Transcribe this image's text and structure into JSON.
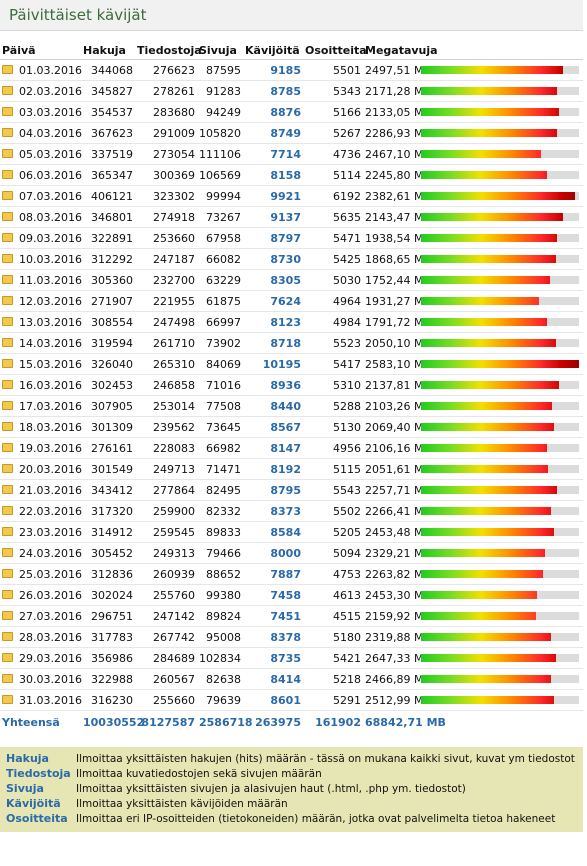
{
  "title": "Päivittäiset kävijät",
  "colors": {
    "title_text": "#3a6e3a",
    "link_blue": "#2a6aa8",
    "legend_bg": "#e6e6b4"
  },
  "headers": [
    "Päivä",
    "Hakuja",
    "Tiedostoja",
    "Sivuja",
    "Kävijöitä",
    "Osoitteita",
    "Megatavuja"
  ],
  "bar_scale_max": 10195,
  "rows": [
    {
      "date": "01.03.2016",
      "hits": "344068",
      "files": "276623",
      "pages": "87595",
      "visitors": "9185",
      "ips": "5501",
      "mb": "2497,51 MB",
      "v": 9185
    },
    {
      "date": "02.03.2016",
      "hits": "345827",
      "files": "278261",
      "pages": "91283",
      "visitors": "8785",
      "ips": "5343",
      "mb": "2171,28 MB",
      "v": 8785
    },
    {
      "date": "03.03.2016",
      "hits": "354537",
      "files": "283680",
      "pages": "94249",
      "visitors": "8876",
      "ips": "5166",
      "mb": "2133,05 MB",
      "v": 8876
    },
    {
      "date": "04.03.2016",
      "hits": "367623",
      "files": "291009",
      "pages": "105820",
      "visitors": "8749",
      "ips": "5267",
      "mb": "2286,93 MB",
      "v": 8749
    },
    {
      "date": "05.03.2016",
      "hits": "337519",
      "files": "273054",
      "pages": "111106",
      "visitors": "7714",
      "ips": "4736",
      "mb": "2467,10 MB",
      "v": 7714
    },
    {
      "date": "06.03.2016",
      "hits": "365347",
      "files": "300369",
      "pages": "106569",
      "visitors": "8158",
      "ips": "5114",
      "mb": "2245,80 MB",
      "v": 8158
    },
    {
      "date": "07.03.2016",
      "hits": "406121",
      "files": "323302",
      "pages": "99994",
      "visitors": "9921",
      "ips": "6192",
      "mb": "2382,61 MB",
      "v": 9921
    },
    {
      "date": "08.03.2016",
      "hits": "346801",
      "files": "274918",
      "pages": "73267",
      "visitors": "9137",
      "ips": "5635",
      "mb": "2143,47 MB",
      "v": 9137
    },
    {
      "date": "09.03.2016",
      "hits": "322891",
      "files": "253660",
      "pages": "67958",
      "visitors": "8797",
      "ips": "5471",
      "mb": "1938,54 MB",
      "v": 8797
    },
    {
      "date": "10.03.2016",
      "hits": "312292",
      "files": "247187",
      "pages": "66082",
      "visitors": "8730",
      "ips": "5425",
      "mb": "1868,65 MB",
      "v": 8730
    },
    {
      "date": "11.03.2016",
      "hits": "305360",
      "files": "232700",
      "pages": "63229",
      "visitors": "8305",
      "ips": "5030",
      "mb": "1752,44 MB",
      "v": 8305
    },
    {
      "date": "12.03.2016",
      "hits": "271907",
      "files": "221955",
      "pages": "61875",
      "visitors": "7624",
      "ips": "4964",
      "mb": "1931,27 MB",
      "v": 7624
    },
    {
      "date": "13.03.2016",
      "hits": "308554",
      "files": "247498",
      "pages": "66997",
      "visitors": "8123",
      "ips": "4984",
      "mb": "1791,72 MB",
      "v": 8123
    },
    {
      "date": "14.03.2016",
      "hits": "319594",
      "files": "261710",
      "pages": "73902",
      "visitors": "8718",
      "ips": "5523",
      "mb": "2050,10 MB",
      "v": 8718
    },
    {
      "date": "15.03.2016",
      "hits": "326040",
      "files": "265310",
      "pages": "84069",
      "visitors": "10195",
      "ips": "5417",
      "mb": "2583,10 MB",
      "v": 10195
    },
    {
      "date": "16.03.2016",
      "hits": "302453",
      "files": "246858",
      "pages": "71016",
      "visitors": "8936",
      "ips": "5310",
      "mb": "2137,81 MB",
      "v": 8936
    },
    {
      "date": "17.03.2016",
      "hits": "307905",
      "files": "253014",
      "pages": "77508",
      "visitors": "8440",
      "ips": "5288",
      "mb": "2103,26 MB",
      "v": 8440
    },
    {
      "date": "18.03.2016",
      "hits": "301309",
      "files": "239562",
      "pages": "73645",
      "visitors": "8567",
      "ips": "5130",
      "mb": "2069,40 MB",
      "v": 8567
    },
    {
      "date": "19.03.2016",
      "hits": "276161",
      "files": "228083",
      "pages": "66982",
      "visitors": "8147",
      "ips": "4956",
      "mb": "2106,16 MB",
      "v": 8147
    },
    {
      "date": "20.03.2016",
      "hits": "301549",
      "files": "249713",
      "pages": "71471",
      "visitors": "8192",
      "ips": "5115",
      "mb": "2051,61 MB",
      "v": 8192
    },
    {
      "date": "21.03.2016",
      "hits": "343412",
      "files": "277864",
      "pages": "82495",
      "visitors": "8795",
      "ips": "5543",
      "mb": "2257,71 MB",
      "v": 8795
    },
    {
      "date": "22.03.2016",
      "hits": "317320",
      "files": "259900",
      "pages": "82332",
      "visitors": "8373",
      "ips": "5502",
      "mb": "2266,41 MB",
      "v": 8373
    },
    {
      "date": "23.03.2016",
      "hits": "314912",
      "files": "259545",
      "pages": "89833",
      "visitors": "8584",
      "ips": "5205",
      "mb": "2453,48 MB",
      "v": 8584
    },
    {
      "date": "24.03.2016",
      "hits": "305452",
      "files": "249313",
      "pages": "79466",
      "visitors": "8000",
      "ips": "5094",
      "mb": "2329,21 MB",
      "v": 8000
    },
    {
      "date": "25.03.2016",
      "hits": "312836",
      "files": "260939",
      "pages": "88652",
      "visitors": "7887",
      "ips": "4753",
      "mb": "2263,82 MB",
      "v": 7887
    },
    {
      "date": "26.03.2016",
      "hits": "302024",
      "files": "255760",
      "pages": "99380",
      "visitors": "7458",
      "ips": "4613",
      "mb": "2453,30 MB",
      "v": 7458
    },
    {
      "date": "27.03.2016",
      "hits": "296751",
      "files": "247142",
      "pages": "89824",
      "visitors": "7451",
      "ips": "4515",
      "mb": "2159,92 MB",
      "v": 7451
    },
    {
      "date": "28.03.2016",
      "hits": "317783",
      "files": "267742",
      "pages": "95008",
      "visitors": "8378",
      "ips": "5180",
      "mb": "2319,88 MB",
      "v": 8378
    },
    {
      "date": "29.03.2016",
      "hits": "356986",
      "files": "284689",
      "pages": "102834",
      "visitors": "8735",
      "ips": "5421",
      "mb": "2647,33 MB",
      "v": 8735
    },
    {
      "date": "30.03.2016",
      "hits": "322988",
      "files": "260567",
      "pages": "82638",
      "visitors": "8414",
      "ips": "5218",
      "mb": "2466,89 MB",
      "v": 8414
    },
    {
      "date": "31.03.2016",
      "hits": "316230",
      "files": "255660",
      "pages": "79639",
      "visitors": "8601",
      "ips": "5291",
      "mb": "2512,99 MB",
      "v": 8601
    }
  ],
  "totals": {
    "label": "Yhteensä",
    "hits": "10030552",
    "files": "8127587",
    "pages": "2586718",
    "visitors": "263975",
    "ips": "161902",
    "mb": "68842,71 MB"
  },
  "legend": [
    {
      "term": "Hakuja",
      "desc": "Ilmoittaa yksittäisten hakujen (hits) määrän - tässä on mukana kaikki sivut, kuvat ym tiedostot"
    },
    {
      "term": "Tiedostoja",
      "desc": "Ilmoittaa kuvatiedostojen sekä sivujen määrän"
    },
    {
      "term": "Sivuja",
      "desc": "Ilmoittaa yksittäisten sivujen ja alasivujen haut (.html, .php ym. tiedostot)"
    },
    {
      "term": "Kävijöitä",
      "desc": "Ilmoittaa yksittäisten kävijöiden määrän"
    },
    {
      "term": "Osoitteita",
      "desc": "Ilmoittaa eri IP-osoitteiden (tietokoneiden) määrän, jotka ovat palvelimelta tietoa hakeneet"
    }
  ]
}
